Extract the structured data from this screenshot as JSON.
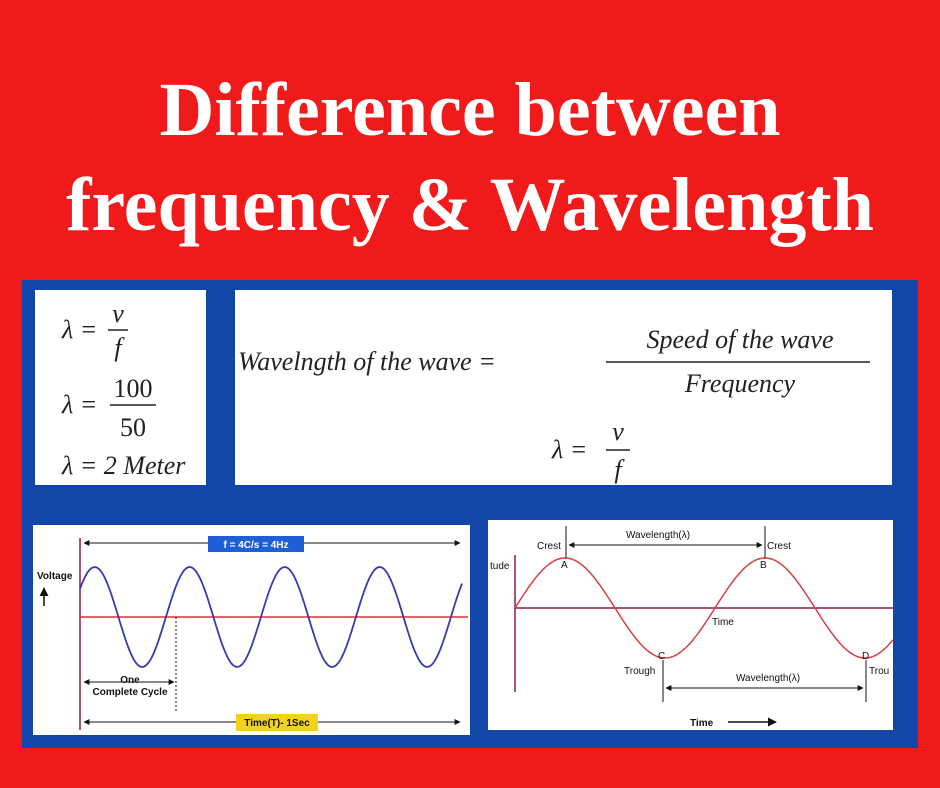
{
  "title": {
    "line1": "Difference between",
    "line2": "frequency & Wavelength"
  },
  "left_formulas": {
    "f1": {
      "lhs": "λ =",
      "num": "v",
      "den": "f"
    },
    "f2": {
      "lhs": "λ =",
      "num": "100",
      "den": "50"
    },
    "f3": "λ = 2 Meter"
  },
  "main_formula": {
    "lhs": "Wavelngth of the wave =",
    "num": "Speed of the wave",
    "den": "Frequency",
    "lhs2": "λ =",
    "num2": "v",
    "den2": "f"
  },
  "frequency_diagram": {
    "frequency_label": "f = 4C/s = 4Hz",
    "y_label": "Voltage",
    "cycle_label": [
      "One",
      "Complete Cycle"
    ],
    "time_label": "Time(T)- 1Sec"
  },
  "wavelength_diagram": {
    "y_label": "tude",
    "crest_left": "Crest",
    "crest_right": "Crest",
    "wavelength_top": "Wavelength(λ)",
    "point_a": "A",
    "point_b": "B",
    "point_c": "C",
    "point_d": "D",
    "time_mid": "Time",
    "trough_left": "Trough",
    "trough_right": "Trou",
    "wavelength_bottom": "Wavelength(λ)",
    "time_axis": "Time"
  }
}
